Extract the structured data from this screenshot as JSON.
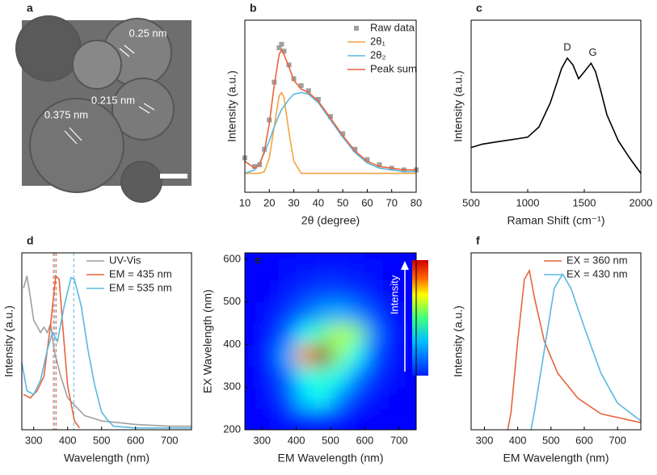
{
  "chart_data": [
    {
      "type": "image",
      "label": "a",
      "annotations": [
        "0.25 nm",
        "0.215 nm",
        "0.375 nm"
      ]
    },
    {
      "type": "line",
      "label": "b",
      "xlabel": "2θ (degree)",
      "ylabel": "Intensity (a.u.)",
      "xlim": [
        10,
        80
      ],
      "ylim": [
        0,
        1
      ],
      "xticks": [
        10,
        20,
        30,
        40,
        50,
        60,
        70,
        80
      ],
      "x": [
        10,
        14,
        16,
        18,
        20,
        22,
        24,
        25,
        26,
        28,
        30,
        33,
        36,
        40,
        45,
        50,
        55,
        60,
        65,
        70,
        75,
        80
      ],
      "series": [
        {
          "name": "Raw data",
          "color": "#a0a0a0",
          "marker": "square",
          "values": [
            0.2,
            0.15,
            0.16,
            0.25,
            0.42,
            0.64,
            0.84,
            0.86,
            0.82,
            0.74,
            0.66,
            0.62,
            0.59,
            0.54,
            0.44,
            0.34,
            0.25,
            0.19,
            0.16,
            0.14,
            0.13,
            0.13
          ]
        },
        {
          "name": "2θ₁",
          "color": "#f4a340",
          "values": [
            0.11,
            0.11,
            0.11,
            0.12,
            0.2,
            0.38,
            0.56,
            0.58,
            0.55,
            0.35,
            0.18,
            0.11,
            0.11,
            0.11,
            0.11,
            0.11,
            0.11,
            0.11,
            0.11,
            0.11,
            0.11,
            0.11
          ]
        },
        {
          "name": "2θ₂",
          "color": "#5bb8e0",
          "values": [
            0.11,
            0.13,
            0.17,
            0.23,
            0.3,
            0.38,
            0.45,
            0.48,
            0.5,
            0.54,
            0.57,
            0.58,
            0.57,
            0.52,
            0.42,
            0.32,
            0.23,
            0.17,
            0.14,
            0.13,
            0.12,
            0.12
          ]
        },
        {
          "name": "Peak sum",
          "color": "#e8643c",
          "values": [
            0.18,
            0.14,
            0.16,
            0.24,
            0.4,
            0.62,
            0.8,
            0.83,
            0.8,
            0.73,
            0.65,
            0.6,
            0.58,
            0.53,
            0.43,
            0.33,
            0.24,
            0.18,
            0.15,
            0.14,
            0.13,
            0.13
          ]
        }
      ]
    },
    {
      "type": "line",
      "label": "c",
      "xlabel": "Raman Shift (cm⁻¹)",
      "ylabel": "Intensity (a.u.)",
      "xlim": [
        500,
        2000
      ],
      "ylim": [
        0,
        1
      ],
      "xticks": [
        500,
        1000,
        1500,
        2000
      ],
      "x": [
        500,
        600,
        700,
        800,
        900,
        1000,
        1100,
        1200,
        1250,
        1300,
        1350,
        1400,
        1450,
        1500,
        1560,
        1600,
        1650,
        1700,
        1800,
        1900,
        2000
      ],
      "series": [
        {
          "color": "#000000",
          "values": [
            0.26,
            0.28,
            0.29,
            0.3,
            0.31,
            0.32,
            0.38,
            0.52,
            0.62,
            0.72,
            0.78,
            0.74,
            0.66,
            0.7,
            0.75,
            0.7,
            0.58,
            0.45,
            0.3,
            0.2,
            0.11
          ]
        }
      ],
      "annotations": [
        {
          "text": "D",
          "x": 1350,
          "y": 0.84
        },
        {
          "text": "G",
          "x": 1575,
          "y": 0.81
        }
      ]
    },
    {
      "type": "line",
      "label": "d",
      "xlabel": "Wavelength (nm)",
      "ylabel": "Intensity (a.u.)",
      "xlim": [
        265,
        765
      ],
      "ylim": [
        0,
        1
      ],
      "xticks": [
        300,
        400,
        500,
        600,
        700
      ],
      "series": [
        {
          "name": "UV-Vis",
          "color": "#a0a0a0",
          "x": [
            270,
            280,
            290,
            300,
            320,
            330,
            340,
            350,
            360,
            380,
            400,
            450,
            500,
            550,
            600,
            700,
            765
          ],
          "values": [
            0.8,
            0.87,
            0.75,
            0.62,
            0.55,
            0.58,
            0.55,
            0.6,
            0.45,
            0.3,
            0.18,
            0.08,
            0.05,
            0.04,
            0.03,
            0.02,
            0.02
          ]
        },
        {
          "name": "EM = 435 nm",
          "color": "#e8643c",
          "x": [
            270,
            290,
            310,
            330,
            350,
            365,
            375,
            385,
            400,
            420,
            435
          ],
          "values": [
            0.2,
            0.18,
            0.22,
            0.3,
            0.6,
            0.87,
            0.85,
            0.6,
            0.25,
            0.05,
            0.01
          ]
        },
        {
          "name": "EM = 535 nm",
          "color": "#5bb8e0",
          "x": [
            265,
            280,
            300,
            320,
            340,
            355,
            370,
            390,
            410,
            420,
            440,
            460,
            480,
            500,
            520,
            535,
            600,
            700,
            765
          ],
          "values": [
            0.38,
            0.22,
            0.2,
            0.28,
            0.45,
            0.55,
            0.5,
            0.7,
            0.86,
            0.85,
            0.7,
            0.45,
            0.25,
            0.1,
            0.05,
            0.02,
            0.01,
            0.01,
            0.01
          ]
        }
      ],
      "vlines": [
        {
          "value": 358,
          "color": "#e8643c"
        },
        {
          "value": 366,
          "color": "#e8643c"
        },
        {
          "value": 362,
          "color": "#5bb8e0"
        },
        {
          "value": 418,
          "color": "#5bb8e0"
        }
      ]
    },
    {
      "type": "heatmap",
      "label": "e",
      "xlabel": "EM Wavelength (nm)",
      "ylabel": "EX Wavelength (nm)",
      "colorbar_label": "Intensity",
      "xlim": [
        250,
        750
      ],
      "ylim": [
        200,
        615
      ],
      "xticks": [
        300,
        400,
        500,
        600,
        700
      ],
      "yticks": [
        200,
        300,
        400,
        500,
        600
      ],
      "x": [
        275,
        325,
        375,
        425,
        475,
        525,
        575,
        625,
        675,
        725
      ],
      "y": [
        225,
        275,
        325,
        375,
        425,
        475,
        525,
        575
      ],
      "z": [
        [
          0,
          0,
          0.03,
          0.05,
          0.05,
          0.03,
          0,
          0,
          0,
          0
        ],
        [
          0,
          0.02,
          0.08,
          0.25,
          0.3,
          0.15,
          0.05,
          0.02,
          0,
          0
        ],
        [
          0,
          0.03,
          0.12,
          0.3,
          0.35,
          0.3,
          0.15,
          0.05,
          0.02,
          0
        ],
        [
          0,
          0.05,
          0.2,
          0.7,
          1.0,
          0.45,
          0.3,
          0.1,
          0.03,
          0
        ],
        [
          0,
          0.03,
          0.12,
          0.3,
          0.4,
          0.5,
          0.45,
          0.15,
          0.03,
          0
        ],
        [
          0,
          0.02,
          0.06,
          0.12,
          0.18,
          0.2,
          0.15,
          0.08,
          0.02,
          0
        ],
        [
          0,
          0,
          0.03,
          0.05,
          0.07,
          0.07,
          0.05,
          0.03,
          0,
          0
        ],
        [
          0,
          0,
          0.01,
          0.02,
          0.03,
          0.03,
          0.02,
          0.01,
          0,
          0
        ]
      ]
    },
    {
      "type": "line",
      "label": "f",
      "xlabel": "EM Wavelength (nm)",
      "ylabel": "Intensity (a.u.)",
      "xlim": [
        260,
        770
      ],
      "ylim": [
        0,
        1
      ],
      "xticks": [
        300,
        400,
        500,
        600,
        700
      ],
      "series": [
        {
          "name": "EX = 360 nm",
          "color": "#e8643c",
          "x": [
            370,
            380,
            400,
            420,
            435,
            450,
            480,
            520,
            580,
            650,
            770
          ],
          "values": [
            0,
            0.1,
            0.5,
            0.85,
            0.9,
            0.75,
            0.5,
            0.32,
            0.18,
            0.09,
            0.04
          ]
        },
        {
          "name": "EX = 430 nm",
          "color": "#5bb8e0",
          "x": [
            440,
            450,
            480,
            510,
            535,
            560,
            600,
            650,
            700,
            770
          ],
          "values": [
            0,
            0.1,
            0.45,
            0.8,
            0.88,
            0.8,
            0.58,
            0.32,
            0.15,
            0.05
          ]
        }
      ]
    }
  ]
}
